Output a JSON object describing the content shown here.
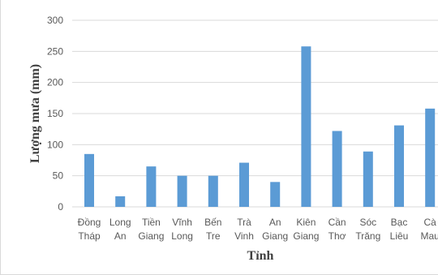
{
  "chart_data": {
    "type": "bar",
    "title": "",
    "xlabel": "Tỉnh",
    "ylabel": "Lượng mưa (mm)",
    "categories": [
      [
        "Đồng",
        "Tháp"
      ],
      [
        "Long",
        "An"
      ],
      [
        "Tiền",
        "Giang"
      ],
      [
        "Vĩnh",
        "Long"
      ],
      [
        "Bến",
        "Tre"
      ],
      [
        "Trà",
        "Vinh"
      ],
      [
        "An",
        "Giang"
      ],
      [
        "Kiên",
        "Giang"
      ],
      [
        "Cần",
        "Thơ"
      ],
      [
        "Sóc",
        "Trăng"
      ],
      [
        "Bạc",
        "Liêu"
      ],
      [
        "Cà",
        "Mau"
      ]
    ],
    "values": [
      85,
      17,
      65,
      50,
      50,
      71,
      40,
      258,
      122,
      89,
      131,
      158
    ],
    "ylim": [
      0,
      300
    ],
    "yticks": [
      0,
      50,
      100,
      150,
      200,
      250,
      300
    ],
    "grid": true,
    "legend": "none",
    "colors": {
      "bar": "#5b9bd5",
      "grid": "#d9d9d9",
      "tick_text": "#595959",
      "axis_title": "#404040"
    }
  }
}
